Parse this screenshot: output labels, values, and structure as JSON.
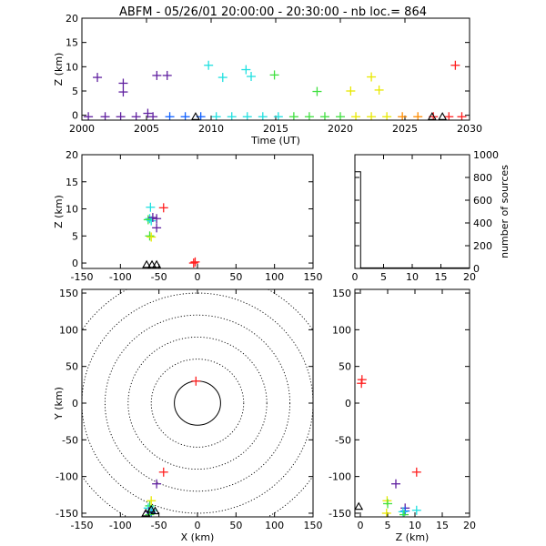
{
  "title": "ABFM - 05/26/01 20:00:00 - 20:30:00 - nb loc.=     864",
  "colors": {
    "red": "#ff2020",
    "orange": "#ff8c00",
    "yellow": "#e8e800",
    "green": "#40e040",
    "cyan": "#20e0e0",
    "blue": "#1060ff",
    "purple": "#6020a0",
    "black": "#000000"
  },
  "chart_data": [
    {
      "id": "time-height",
      "type": "scatter",
      "xlabel": "Time (UT)",
      "ylabel": "Z (km)",
      "xlim": [
        2000,
        2030
      ],
      "ylim": [
        -1,
        20
      ],
      "xticks": [
        "2000",
        "2005",
        "2010",
        "2015",
        "2020",
        "2025",
        "2030"
      ],
      "yticks": [
        "0",
        "5",
        "10",
        "15",
        "20"
      ],
      "points": [
        {
          "x": 2001.2,
          "y": 7.8,
          "c": "purple"
        },
        {
          "x": 2003.2,
          "y": 6.6,
          "c": "purple"
        },
        {
          "x": 2003.2,
          "y": 4.8,
          "c": "purple"
        },
        {
          "x": 2005.8,
          "y": 8.2,
          "c": "purple"
        },
        {
          "x": 2006.6,
          "y": 8.2,
          "c": "purple"
        },
        {
          "x": 2009.8,
          "y": 10.3,
          "c": "cyan"
        },
        {
          "x": 2010.9,
          "y": 7.8,
          "c": "cyan"
        },
        {
          "x": 2012.7,
          "y": 9.4,
          "c": "cyan"
        },
        {
          "x": 2013.1,
          "y": 8.0,
          "c": "cyan"
        },
        {
          "x": 2014.9,
          "y": 8.3,
          "c": "green"
        },
        {
          "x": 2018.2,
          "y": 4.9,
          "c": "green"
        },
        {
          "x": 2020.8,
          "y": 5.0,
          "c": "yellow"
        },
        {
          "x": 2022.4,
          "y": 7.9,
          "c": "yellow"
        },
        {
          "x": 2023.0,
          "y": 5.2,
          "c": "yellow"
        },
        {
          "x": 2028.9,
          "y": 10.3,
          "c": "red"
        },
        {
          "x": 2005.1,
          "y": 0.4,
          "c": "purple"
        },
        {
          "x": 2000.5,
          "y": -0.3,
          "c": "purple"
        },
        {
          "x": 2001.8,
          "y": -0.3,
          "c": "purple"
        },
        {
          "x": 2003.0,
          "y": -0.3,
          "c": "purple"
        },
        {
          "x": 2004.2,
          "y": -0.3,
          "c": "purple"
        },
        {
          "x": 2005.5,
          "y": -0.3,
          "c": "purple"
        },
        {
          "x": 2006.8,
          "y": -0.3,
          "c": "blue"
        },
        {
          "x": 2008.0,
          "y": -0.3,
          "c": "blue"
        },
        {
          "x": 2009.2,
          "y": -0.3,
          "c": "blue"
        },
        {
          "x": 2010.4,
          "y": -0.3,
          "c": "cyan"
        },
        {
          "x": 2011.6,
          "y": -0.3,
          "c": "cyan"
        },
        {
          "x": 2012.8,
          "y": -0.3,
          "c": "cyan"
        },
        {
          "x": 2014.0,
          "y": -0.3,
          "c": "cyan"
        },
        {
          "x": 2015.2,
          "y": -0.3,
          "c": "cyan"
        },
        {
          "x": 2016.4,
          "y": -0.3,
          "c": "green"
        },
        {
          "x": 2017.6,
          "y": -0.3,
          "c": "green"
        },
        {
          "x": 2018.8,
          "y": -0.3,
          "c": "green"
        },
        {
          "x": 2020.0,
          "y": -0.3,
          "c": "green"
        },
        {
          "x": 2021.2,
          "y": -0.3,
          "c": "yellow"
        },
        {
          "x": 2022.4,
          "y": -0.3,
          "c": "yellow"
        },
        {
          "x": 2023.6,
          "y": -0.3,
          "c": "yellow"
        },
        {
          "x": 2024.8,
          "y": -0.3,
          "c": "orange"
        },
        {
          "x": 2026.0,
          "y": -0.3,
          "c": "orange"
        },
        {
          "x": 2027.2,
          "y": -0.3,
          "c": "red"
        },
        {
          "x": 2028.4,
          "y": -0.3,
          "c": "red"
        },
        {
          "x": 2029.4,
          "y": -0.3,
          "c": "red"
        }
      ],
      "stations": [
        {
          "x": 2008.8,
          "y": -0.3
        },
        {
          "x": 2027.1,
          "y": -0.3
        },
        {
          "x": 2027.9,
          "y": -0.3
        }
      ]
    },
    {
      "id": "x-z",
      "type": "scatter",
      "ylabel": "Z (km)",
      "xlim": [
        -150,
        150
      ],
      "ylim": [
        -1,
        20
      ],
      "xticks": [
        "-150",
        "-100",
        "-50",
        "0",
        "50",
        "100",
        "150"
      ],
      "yticks": [
        "0",
        "5",
        "10",
        "15",
        "20"
      ],
      "points": [
        {
          "x": -62,
          "y": 8.2,
          "c": "cyan"
        },
        {
          "x": -61,
          "y": 10.3,
          "c": "cyan"
        },
        {
          "x": -64,
          "y": 8.0,
          "c": "green"
        },
        {
          "x": -60,
          "y": 7.8,
          "c": "cyan"
        },
        {
          "x": -58,
          "y": 8.4,
          "c": "purple"
        },
        {
          "x": -53,
          "y": 8.2,
          "c": "purple"
        },
        {
          "x": -53,
          "y": 6.5,
          "c": "purple"
        },
        {
          "x": -44,
          "y": 10.2,
          "c": "red"
        },
        {
          "x": -62,
          "y": 5.0,
          "c": "green"
        },
        {
          "x": -60,
          "y": 4.8,
          "c": "yellow"
        },
        {
          "x": -3,
          "y": 0.2,
          "c": "red"
        },
        {
          "x": -5,
          "y": 0.0,
          "c": "red"
        }
      ],
      "stations": [
        {
          "x": -66,
          "y": -0.3
        },
        {
          "x": -59,
          "y": -0.3
        },
        {
          "x": -53,
          "y": -0.3
        }
      ]
    },
    {
      "id": "histogram",
      "type": "bar",
      "ylabel": "number of sources",
      "xlim": [
        0,
        20
      ],
      "ylim": [
        0,
        1000
      ],
      "xticks": [
        "0",
        "5",
        "10",
        "15",
        "20"
      ],
      "yticks": [
        "0",
        "200",
        "400",
        "600",
        "800",
        "1000"
      ],
      "bins": [
        {
          "x0": 0,
          "x1": 1,
          "v": 850
        },
        {
          "x0": 1,
          "x1": 20,
          "v": 5
        }
      ]
    },
    {
      "id": "x-y",
      "type": "scatter",
      "xlabel": "X (km)",
      "ylabel": "Y (km)",
      "xlim": [
        -150,
        150
      ],
      "ylim": [
        -155,
        155
      ],
      "xticks": [
        "-150",
        "-100",
        "-50",
        "0",
        "50",
        "100",
        "150"
      ],
      "yticks": [
        "-150",
        "-100",
        "-50",
        "0",
        "50",
        "100",
        "150"
      ],
      "range_rings_km": [
        30,
        60,
        90,
        120,
        150,
        180
      ],
      "points": [
        {
          "x": -2,
          "y": 30,
          "c": "red"
        },
        {
          "x": -44,
          "y": -94,
          "c": "red"
        },
        {
          "x": -53,
          "y": -110,
          "c": "purple"
        },
        {
          "x": -60,
          "y": -133,
          "c": "yellow"
        },
        {
          "x": -62,
          "y": -140,
          "c": "green"
        },
        {
          "x": -64,
          "y": -143,
          "c": "cyan"
        },
        {
          "x": -63,
          "y": -148,
          "c": "purple"
        },
        {
          "x": -60,
          "y": -150,
          "c": "blue"
        },
        {
          "x": -58,
          "y": -146,
          "c": "cyan"
        },
        {
          "x": -62,
          "y": -152,
          "c": "green"
        }
      ],
      "stations": [
        {
          "x": -67,
          "y": -150
        },
        {
          "x": -60,
          "y": -145
        },
        {
          "x": -55,
          "y": -147
        }
      ]
    },
    {
      "id": "z-y",
      "type": "scatter",
      "xlabel": "Z (km)",
      "xlim": [
        -1,
        20
      ],
      "ylim": [
        -155,
        155
      ],
      "xticks": [
        "0",
        "5",
        "10",
        "15",
        "20"
      ],
      "yticks": [
        "-150",
        "-100",
        "-50",
        "0",
        "50",
        "100",
        "150"
      ],
      "points": [
        {
          "x": 0.3,
          "y": 32,
          "c": "red"
        },
        {
          "x": 0.2,
          "y": 27,
          "c": "red"
        },
        {
          "x": 10.3,
          "y": -94,
          "c": "red"
        },
        {
          "x": 6.5,
          "y": -110,
          "c": "purple"
        },
        {
          "x": 4.9,
          "y": -133,
          "c": "yellow"
        },
        {
          "x": 5.0,
          "y": -137,
          "c": "green"
        },
        {
          "x": 8.2,
          "y": -143,
          "c": "purple"
        },
        {
          "x": 8.2,
          "y": -147,
          "c": "blue"
        },
        {
          "x": 10.3,
          "y": -146,
          "c": "cyan"
        },
        {
          "x": 7.8,
          "y": -148,
          "c": "cyan"
        },
        {
          "x": 8.0,
          "y": -152,
          "c": "green"
        },
        {
          "x": 4.8,
          "y": -150,
          "c": "yellow"
        }
      ],
      "stations": [
        {
          "x": -0.3,
          "y": -141
        }
      ]
    }
  ]
}
